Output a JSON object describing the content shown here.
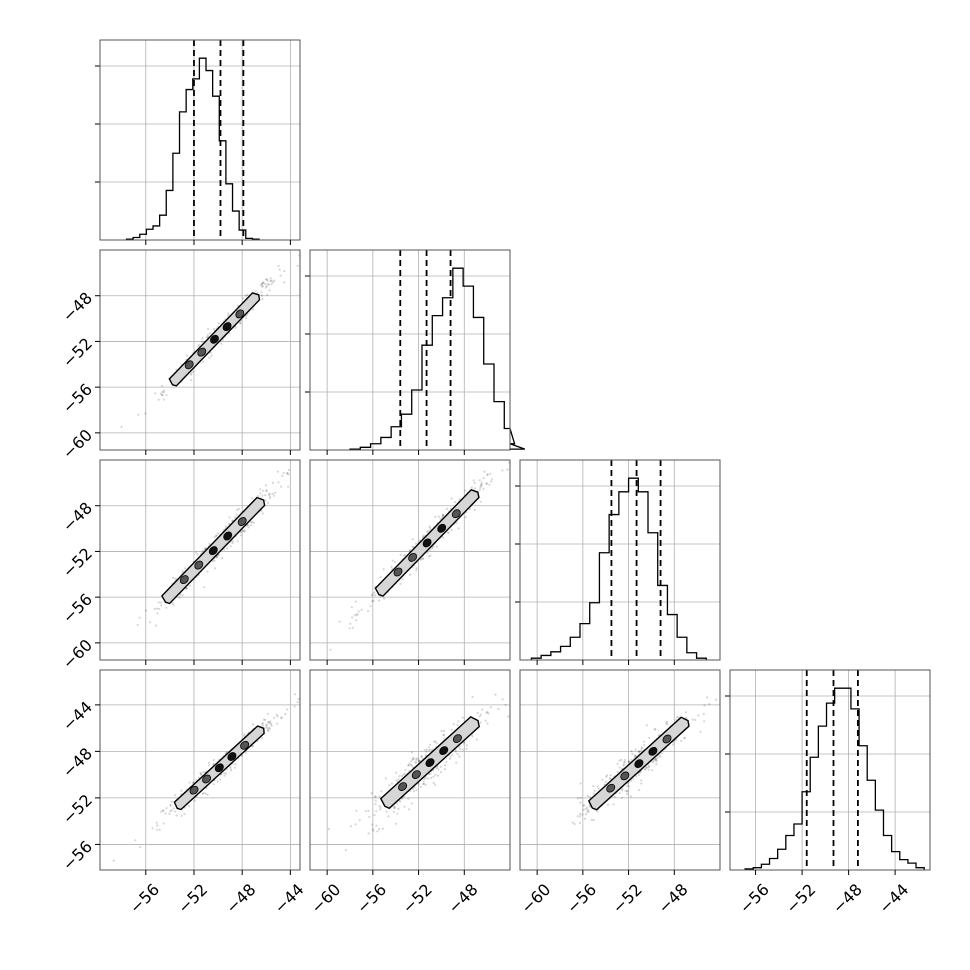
{
  "chart_data": {
    "type": "corner",
    "parameters": 4,
    "grid": true,
    "ticks": {
      "x_col0": [
        "−56",
        "−52",
        "−48",
        "−44"
      ],
      "x_col1": [
        "−60",
        "−56",
        "−52",
        "−48"
      ],
      "x_col2": [
        "−60",
        "−56",
        "−52",
        "−48"
      ],
      "x_col3": [
        "−56",
        "−52",
        "−48",
        "−44"
      ],
      "y_row1": [
        "−48",
        "−52",
        "−56",
        "−60"
      ],
      "y_row2": [
        "−48",
        "−52",
        "−56",
        "−60"
      ],
      "y_row3": [
        "−44",
        "−48",
        "−52",
        "−56"
      ]
    },
    "axis_ranges": {
      "p0": [
        -59.8,
        -43.2
      ],
      "p1": [
        -61.5,
        -44.0
      ],
      "p2": [
        -61.5,
        -44.0
      ],
      "p3": [
        -58.2,
        -41.0
      ]
    },
    "quantiles": {
      "p0": [
        -52.0,
        -49.8,
        -47.9
      ],
      "p1": [
        -53.6,
        -51.3,
        -49.2
      ],
      "p2": [
        -53.5,
        -51.3,
        -49.2
      ],
      "p3": [
        -51.6,
        -49.3,
        -47.2
      ]
    },
    "histograms": [
      {
        "name": "p0",
        "bin_start": -57.6,
        "bin_width": 0.55,
        "counts": [
          1,
          3,
          7,
          13,
          17,
          30,
          60,
          105,
          155,
          182,
          195,
          220,
          205,
          174,
          120,
          68,
          35,
          12,
          2,
          1
        ]
      },
      {
        "name": "p1",
        "bin_start": -58.0,
        "bin_width": 0.9,
        "counts": [
          1,
          3,
          7,
          14,
          26,
          40,
          67,
          117,
          150,
          170,
          203,
          183,
          148,
          96,
          54,
          24,
          7,
          1
        ]
      },
      {
        "name": "p2",
        "bin_start": -60.5,
        "bin_width": 0.85,
        "counts": [
          2,
          5,
          9,
          15,
          25,
          40,
          63,
          118,
          160,
          185,
          200,
          185,
          140,
          82,
          50,
          25,
          8,
          2
        ]
      },
      {
        "name": "p3",
        "bin_start": -56.9,
        "bin_width": 0.7,
        "counts": [
          1,
          2,
          5,
          10,
          18,
          30,
          40,
          68,
          98,
          125,
          145,
          158,
          158,
          140,
          108,
          78,
          52,
          30,
          16,
          9,
          6,
          2
        ]
      }
    ],
    "pairs": [
      {
        "x": "p0",
        "y": "p1",
        "slope": 1.06,
        "intercept": 1.5,
        "width": 0.45,
        "contour_x": [
          -53.8,
          -46.8
        ]
      },
      {
        "x": "p0",
        "y": "p2",
        "slope": 1.06,
        "intercept": 1.5,
        "width": 0.6,
        "contour_x": [
          -54.4,
          -46.4
        ]
      },
      {
        "x": "p0",
        "y": "p3",
        "slope": 0.92,
        "intercept": -3.5,
        "width": 0.45,
        "contour_x": [
          -53.4,
          -46.4
        ]
      },
      {
        "x": "p1",
        "y": "p2",
        "slope": 1.0,
        "intercept": 0.0,
        "width": 0.6,
        "contour_x": [
          -55.5,
          -47.0
        ]
      },
      {
        "x": "p1",
        "y": "p3",
        "slope": 0.86,
        "intercept": -5.1,
        "width": 0.9,
        "contour_x": [
          -55.0,
          -47.0
        ]
      },
      {
        "x": "p2",
        "y": "p3",
        "slope": 0.86,
        "intercept": -5.1,
        "width": 0.75,
        "contour_x": [
          -55.2,
          -47.0
        ]
      }
    ],
    "colors": {
      "hist_line": "#000000",
      "grid": "#b0b0b0",
      "scatter": "#000000",
      "contour_fill": "#d6d6d6"
    }
  }
}
